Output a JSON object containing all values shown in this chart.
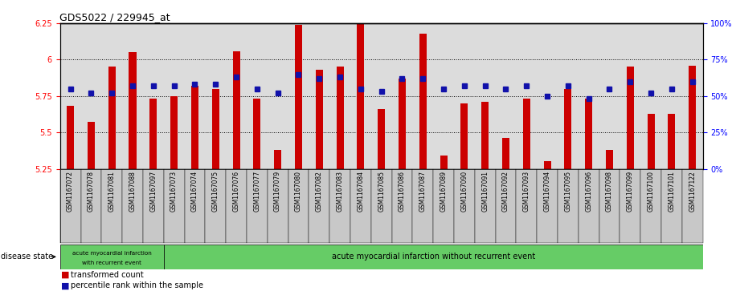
{
  "title": "GDS5022 / 229945_at",
  "samples": [
    "GSM1167072",
    "GSM1167078",
    "GSM1167081",
    "GSM1167088",
    "GSM1167097",
    "GSM1167073",
    "GSM1167074",
    "GSM1167075",
    "GSM1167076",
    "GSM1167077",
    "GSM1167079",
    "GSM1167080",
    "GSM1167082",
    "GSM1167083",
    "GSM1167084",
    "GSM1167085",
    "GSM1167086",
    "GSM1167087",
    "GSM1167089",
    "GSM1167090",
    "GSM1167091",
    "GSM1167092",
    "GSM1167093",
    "GSM1167094",
    "GSM1167095",
    "GSM1167096",
    "GSM1167098",
    "GSM1167099",
    "GSM1167100",
    "GSM1167101",
    "GSM1167122"
  ],
  "bar_values": [
    5.68,
    5.57,
    5.95,
    6.05,
    5.73,
    5.75,
    5.82,
    5.8,
    6.06,
    5.73,
    5.38,
    6.24,
    5.93,
    5.95,
    6.35,
    5.66,
    5.87,
    6.18,
    5.34,
    5.7,
    5.71,
    5.46,
    5.73,
    5.3,
    5.8,
    5.73,
    5.38,
    5.95,
    5.63,
    5.63,
    5.96
  ],
  "percentile_values": [
    55,
    52,
    52,
    57,
    57,
    57,
    58,
    58,
    63,
    55,
    52,
    65,
    62,
    63,
    55,
    53,
    62,
    62,
    55,
    57,
    57,
    55,
    57,
    50,
    57,
    48,
    55,
    60,
    52,
    55,
    60
  ],
  "group1_count": 5,
  "group2_count": 26,
  "group1_label_line1": "acute myocardial infarction",
  "group1_label_line2": "with recurrent event",
  "group2_label": "acute myocardial infarction without recurrent event",
  "disease_state_label": "disease state",
  "ylim_left": [
    5.25,
    6.25
  ],
  "ylim_right": [
    0,
    100
  ],
  "yticks_left": [
    5.25,
    5.5,
    5.75,
    6.0,
    6.25
  ],
  "yticks_right": [
    0,
    25,
    50,
    75,
    100
  ],
  "ytick_labels_left": [
    "5.25",
    "5.5",
    "5.75",
    "6",
    "6.25"
  ],
  "ytick_labels_right": [
    "0%",
    "25%",
    "50%",
    "75%",
    "100%"
  ],
  "hgrid_values": [
    5.5,
    5.75,
    6.0
  ],
  "bar_color": "#CC0000",
  "percentile_color": "#1111AA",
  "bg_color": "#DCDCDC",
  "tick_label_bg": "#C8C8C8",
  "green_color": "#66CC66",
  "legend_items": [
    "transformed count",
    "percentile rank within the sample"
  ]
}
